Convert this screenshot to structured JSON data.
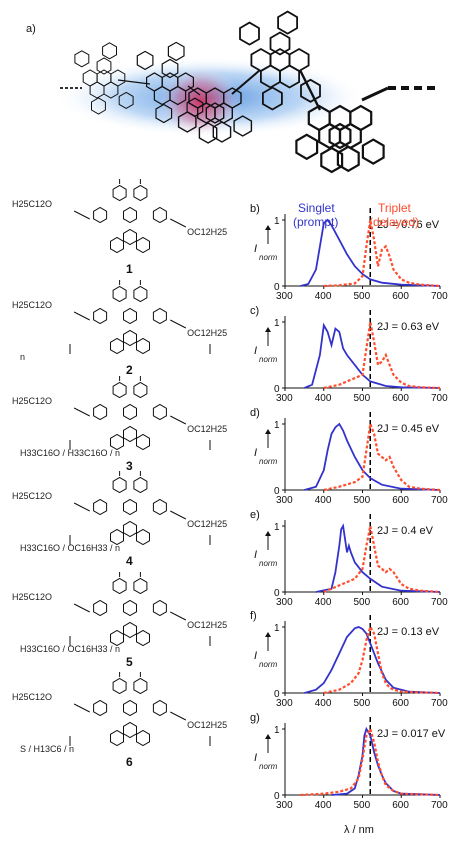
{
  "figure": {
    "panel_a_label": "a)",
    "compounds": [
      {
        "number": "1",
        "left_chain": "H25C12O",
        "right_chain": "OC12H25",
        "extra": ""
      },
      {
        "number": "2",
        "left_chain": "H25C12O",
        "right_chain": "OC12H25",
        "extra": "n"
      },
      {
        "number": "3",
        "left_chain": "H25C12O",
        "right_chain": "OC12H25",
        "extra": "H33C16O / H33C16O / n"
      },
      {
        "number": "4",
        "left_chain": "H25C12O",
        "right_chain": "OC12H25",
        "extra": "H33C16O / OC16H33 / n"
      },
      {
        "number": "5",
        "left_chain": "H25C12O",
        "right_chain": "OC12H25",
        "extra": "H33C16O / OC16H33 / n"
      },
      {
        "number": "6",
        "left_chain": "H25C12O",
        "right_chain": "OC12H25",
        "extra": "S / H13C6 / n"
      }
    ],
    "legend": {
      "singlet": "Singlet",
      "singlet_sub": "(prompt)",
      "triplet": "Triplet",
      "triplet_sub": "(delayed)"
    },
    "colors": {
      "singlet": "#3333cc",
      "triplet": "#ff4d2e",
      "dashed": "#000000"
    },
    "ylabel": "I",
    "ylabel_sub": "norm",
    "xlabel": "λ / nm"
  },
  "chart_data": [
    {
      "panel": "b)",
      "type": "line",
      "annotation": "2J = 0.76 eV",
      "xlim": [
        300,
        700
      ],
      "ylim": [
        0,
        1
      ],
      "yticks": [
        "0",
        "1"
      ],
      "xticks": [
        "300",
        "400",
        "500",
        "600",
        "700"
      ],
      "vline": 520,
      "series": [
        {
          "name": "Singlet",
          "x": [
            340,
            360,
            380,
            390,
            400,
            410,
            420,
            440,
            460,
            480,
            500,
            520,
            550,
            600,
            650,
            700
          ],
          "y": [
            0,
            0.03,
            0.25,
            0.6,
            0.95,
            1.0,
            0.92,
            0.7,
            0.48,
            0.3,
            0.18,
            0.1,
            0.05,
            0.02,
            0.01,
            0
          ]
        },
        {
          "name": "Triplet",
          "x": [
            400,
            440,
            480,
            500,
            510,
            520,
            530,
            540,
            550,
            560,
            570,
            580,
            600,
            620,
            650,
            700
          ],
          "y": [
            0,
            0.01,
            0.04,
            0.15,
            0.6,
            1.0,
            0.7,
            0.3,
            0.55,
            0.6,
            0.45,
            0.25,
            0.1,
            0.05,
            0.02,
            0
          ]
        }
      ]
    },
    {
      "panel": "c)",
      "type": "line",
      "annotation": "2J = 0.63 eV",
      "xlim": [
        300,
        700
      ],
      "ylim": [
        0,
        1
      ],
      "yticks": [
        "0",
        "1"
      ],
      "xticks": [
        "300",
        "400",
        "500",
        "600",
        "700"
      ],
      "vline": 520,
      "series": [
        {
          "name": "Singlet",
          "x": [
            350,
            370,
            390,
            400,
            410,
            420,
            430,
            440,
            450,
            460,
            480,
            500,
            520,
            560,
            600,
            700
          ],
          "y": [
            0,
            0.05,
            0.5,
            0.95,
            0.85,
            0.65,
            0.9,
            0.85,
            0.6,
            0.5,
            0.35,
            0.2,
            0.1,
            0.03,
            0.01,
            0
          ]
        },
        {
          "name": "Triplet",
          "x": [
            400,
            440,
            480,
            500,
            510,
            520,
            530,
            540,
            550,
            560,
            570,
            580,
            600,
            620,
            650,
            700
          ],
          "y": [
            0,
            0.05,
            0.15,
            0.2,
            0.6,
            1.0,
            0.7,
            0.35,
            0.4,
            0.5,
            0.35,
            0.2,
            0.08,
            0.03,
            0.01,
            0
          ]
        }
      ]
    },
    {
      "panel": "d)",
      "type": "line",
      "annotation": "2J = 0.45 eV",
      "xlim": [
        300,
        700
      ],
      "ylim": [
        0,
        1
      ],
      "yticks": [
        "0",
        "1"
      ],
      "xticks": [
        "300",
        "400",
        "500",
        "600",
        "700"
      ],
      "vline": 520,
      "series": [
        {
          "name": "Singlet",
          "x": [
            350,
            380,
            400,
            410,
            420,
            430,
            440,
            450,
            460,
            480,
            500,
            520,
            550,
            600,
            650,
            700
          ],
          "y": [
            0,
            0.05,
            0.3,
            0.6,
            0.85,
            0.95,
            1.0,
            0.9,
            0.75,
            0.5,
            0.3,
            0.18,
            0.08,
            0.02,
            0.01,
            0
          ]
        },
        {
          "name": "Triplet",
          "x": [
            400,
            440,
            480,
            500,
            510,
            520,
            530,
            540,
            550,
            560,
            570,
            580,
            600,
            620,
            650,
            700
          ],
          "y": [
            0,
            0.05,
            0.12,
            0.2,
            0.6,
            1.0,
            0.85,
            0.55,
            0.5,
            0.45,
            0.5,
            0.35,
            0.15,
            0.05,
            0.02,
            0
          ]
        }
      ]
    },
    {
      "panel": "e)",
      "type": "line",
      "annotation": "2J = 0.4 eV",
      "xlim": [
        300,
        700
      ],
      "ylim": [
        0,
        1
      ],
      "yticks": [
        "0",
        "1"
      ],
      "xticks": [
        "300",
        "400",
        "500",
        "600",
        "700"
      ],
      "vline": 520,
      "series": [
        {
          "name": "Singlet",
          "x": [
            380,
            420,
            430,
            440,
            445,
            450,
            460,
            465,
            470,
            480,
            500,
            520,
            550,
            600,
            650,
            700
          ],
          "y": [
            0,
            0.05,
            0.3,
            0.7,
            0.95,
            1.0,
            0.6,
            0.7,
            0.6,
            0.45,
            0.3,
            0.2,
            0.08,
            0.02,
            0.01,
            0
          ]
        },
        {
          "name": "Triplet",
          "x": [
            400,
            440,
            480,
            500,
            510,
            520,
            530,
            540,
            550,
            560,
            570,
            580,
            600,
            620,
            650,
            700
          ],
          "y": [
            0,
            0.1,
            0.2,
            0.35,
            0.7,
            1.0,
            0.7,
            0.4,
            0.35,
            0.3,
            0.35,
            0.3,
            0.12,
            0.05,
            0.02,
            0
          ]
        }
      ]
    },
    {
      "panel": "f)",
      "type": "line",
      "annotation": "2J = 0.13 eV",
      "xlim": [
        300,
        700
      ],
      "ylim": [
        0,
        1
      ],
      "yticks": [
        "0",
        "1"
      ],
      "xticks": [
        "300",
        "400",
        "500",
        "600",
        "700"
      ],
      "vline": 520,
      "series": [
        {
          "name": "Singlet",
          "x": [
            350,
            380,
            400,
            420,
            440,
            460,
            480,
            490,
            500,
            510,
            520,
            540,
            560,
            580,
            620,
            700
          ],
          "y": [
            0,
            0.05,
            0.15,
            0.35,
            0.6,
            0.85,
            0.98,
            1.0,
            0.97,
            0.9,
            0.75,
            0.45,
            0.2,
            0.08,
            0.02,
            0
          ]
        },
        {
          "name": "Triplet",
          "x": [
            400,
            440,
            470,
            490,
            500,
            510,
            520,
            530,
            540,
            550,
            560,
            570,
            580,
            600,
            640,
            700
          ],
          "y": [
            0,
            0.05,
            0.15,
            0.3,
            0.5,
            0.8,
            1.0,
            0.9,
            0.6,
            0.3,
            0.15,
            0.08,
            0.05,
            0.02,
            0.01,
            0
          ]
        }
      ]
    },
    {
      "panel": "g)",
      "type": "line",
      "annotation": "2J = 0.017 eV",
      "xlim": [
        300,
        700
      ],
      "ylim": [
        0,
        1
      ],
      "yticks": [
        "0",
        "1"
      ],
      "xticks": [
        "300",
        "400",
        "500",
        "600",
        "700"
      ],
      "vline": 520,
      "series": [
        {
          "name": "Singlet",
          "x": [
            420,
            460,
            480,
            490,
            500,
            505,
            510,
            520,
            530,
            540,
            550,
            560,
            580,
            600,
            650,
            700
          ],
          "y": [
            0,
            0.02,
            0.1,
            0.3,
            0.6,
            0.9,
            1.0,
            0.9,
            0.65,
            0.45,
            0.3,
            0.18,
            0.06,
            0.02,
            0.01,
            0
          ]
        },
        {
          "name": "Triplet",
          "x": [
            340,
            400,
            440,
            470,
            490,
            500,
            510,
            520,
            530,
            540,
            550,
            560,
            580,
            600,
            650,
            700
          ],
          "y": [
            0,
            0.02,
            0.05,
            0.1,
            0.25,
            0.55,
            0.9,
            1.0,
            0.8,
            0.5,
            0.3,
            0.15,
            0.06,
            0.02,
            0.01,
            0
          ]
        }
      ]
    }
  ]
}
